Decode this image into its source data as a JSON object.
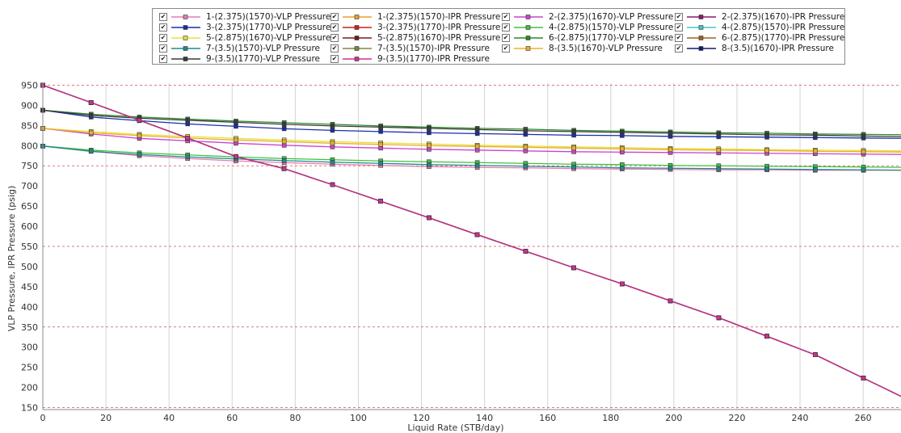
{
  "chart_data": {
    "type": "line",
    "xlabel": "Liquid Rate  (STB/day)",
    "ylabel": "VLP Pressure, IPR Pressure  (psig)",
    "xlim": [
      0,
      272
    ],
    "ylim": [
      145,
      955
    ],
    "xticks": [
      0,
      20,
      40,
      60,
      80,
      100,
      120,
      140,
      160,
      180,
      200,
      220,
      240,
      260
    ],
    "yticks": [
      150,
      200,
      250,
      300,
      350,
      400,
      450,
      500,
      550,
      600,
      650,
      700,
      750,
      800,
      850,
      900,
      950
    ],
    "grid": true,
    "legend_position": "top",
    "x": [
      0,
      15.3,
      30.6,
      45.9,
      61.2,
      76.5,
      91.8,
      107.1,
      122.4,
      137.7,
      153,
      168.3,
      183.6,
      198.9,
      214.2,
      229.5,
      244.8,
      260.1
    ],
    "series": [
      {
        "name": "1-(2.375)(1570)-VLP Pressure",
        "color": "#e87bb0",
        "values": [
          799,
          786,
          775,
          768,
          762,
          758,
          754,
          751,
          748,
          746,
          745,
          743,
          742,
          741,
          740,
          740,
          739,
          739
        ]
      },
      {
        "name": "1-(2.375)(1570)-IPR Pressure",
        "color": "#e8a030",
        "values": [
          950,
          907,
          863,
          819,
          773,
          743,
          703,
          662,
          621,
          579,
          538,
          497,
          457,
          415,
          373,
          327,
          281,
          223
        ]
      },
      {
        "name": "2-(2.375)(1670)-VLP Pressure",
        "color": "#cc44cc",
        "values": [
          843,
          829,
          818,
          812,
          806,
          801,
          797,
          794,
          791,
          789,
          787,
          785,
          784,
          783,
          782,
          781,
          780,
          779
        ]
      },
      {
        "name": "2-(2.375)(1670)-IPR Pressure",
        "color": "#8a1a6a",
        "values": [
          950,
          907,
          863,
          819,
          773,
          743,
          703,
          662,
          621,
          579,
          538,
          497,
          457,
          415,
          373,
          327,
          281,
          223
        ]
      },
      {
        "name": "3-(2.375)(1770)-VLP Pressure",
        "color": "#1a2ea8",
        "values": [
          888,
          871,
          862,
          854,
          848,
          842,
          838,
          835,
          832,
          830,
          828,
          826,
          825,
          823,
          822,
          821,
          820,
          819
        ]
      },
      {
        "name": "3-(2.375)(1770)-IPR Pressure",
        "color": "#cc2020",
        "values": [
          950,
          907,
          863,
          819,
          773,
          743,
          703,
          662,
          621,
          579,
          538,
          497,
          457,
          415,
          373,
          327,
          281,
          223
        ]
      },
      {
        "name": "4-(2.875)(1570)-VLP Pressure",
        "color": "#40c040",
        "values": [
          799,
          789,
          782,
          777,
          772,
          768,
          765,
          762,
          760,
          758,
          756,
          754,
          753,
          751,
          750,
          749,
          748,
          747
        ]
      },
      {
        "name": "4-(2.875)(1570)-IPR Pressure",
        "color": "#40c8c8",
        "values": [
          950,
          907,
          863,
          819,
          773,
          743,
          703,
          662,
          621,
          579,
          538,
          497,
          457,
          415,
          373,
          327,
          281,
          223
        ]
      },
      {
        "name": "5-(2.875)(1670)-VLP Pressure",
        "color": "#e8e040",
        "values": [
          843,
          835,
          828,
          823,
          818,
          814,
          810,
          807,
          804,
          801,
          799,
          797,
          795,
          793,
          792,
          790,
          789,
          788
        ]
      },
      {
        "name": "5-(2.875)(1670)-IPR Pressure",
        "color": "#7a1a1a",
        "values": [
          950,
          907,
          863,
          819,
          773,
          743,
          703,
          662,
          621,
          579,
          538,
          497,
          457,
          415,
          373,
          327,
          281,
          223
        ]
      },
      {
        "name": "6-(2.875)(1770)-VLP Pressure",
        "color": "#2a8a2a",
        "values": [
          888,
          878,
          871,
          866,
          861,
          857,
          853,
          849,
          846,
          843,
          841,
          838,
          836,
          834,
          832,
          831,
          829,
          828
        ]
      },
      {
        "name": "6-(2.875)(1770)-IPR Pressure",
        "color": "#a06020",
        "values": [
          950,
          907,
          863,
          819,
          773,
          743,
          703,
          662,
          621,
          579,
          538,
          497,
          457,
          415,
          373,
          327,
          281,
          223
        ]
      },
      {
        "name": "7-(3.5)(1570)-VLP Pressure",
        "color": "#208a8a",
        "values": [
          799,
          786,
          778,
          772,
          767,
          763,
          759,
          756,
          753,
          751,
          749,
          747,
          745,
          744,
          743,
          742,
          741,
          740
        ]
      },
      {
        "name": "7-(3.5)(1570)-IPR Pressure",
        "color": "#7a8a3a",
        "values": [
          950,
          907,
          863,
          819,
          773,
          743,
          703,
          662,
          621,
          579,
          538,
          497,
          457,
          415,
          373,
          327,
          281,
          223
        ]
      },
      {
        "name": "8-(3.5)(1670)-VLP Pressure",
        "color": "#e8b030",
        "values": [
          843,
          832,
          825,
          819,
          814,
          810,
          806,
          803,
          800,
          798,
          796,
          794,
          792,
          790,
          789,
          788,
          786,
          785
        ]
      },
      {
        "name": "8-(3.5)(1670)-IPR Pressure",
        "color": "#101a6a",
        "values": [
          950,
          907,
          863,
          819,
          773,
          743,
          703,
          662,
          621,
          579,
          538,
          497,
          457,
          415,
          373,
          327,
          281,
          223
        ]
      },
      {
        "name": "9-(3.5)(1770)-VLP Pressure",
        "color": "#3a3a3a",
        "values": [
          888,
          875,
          868,
          863,
          858,
          853,
          849,
          846,
          843,
          840,
          837,
          835,
          833,
          831,
          829,
          827,
          826,
          824
        ]
      },
      {
        "name": "9-(3.5)(1770)-IPR Pressure",
        "color": "#d03090",
        "values": [
          950,
          907,
          863,
          819,
          773,
          743,
          703,
          662,
          621,
          579,
          538,
          497,
          457,
          415,
          373,
          327,
          281,
          223
        ]
      }
    ]
  },
  "legend": {
    "check_glyph": "✔",
    "order": [
      "1-(2.375)(1570)-VLP Pressure",
      "1-(2.375)(1570)-IPR Pressure",
      "2-(2.375)(1670)-VLP Pressure",
      "2-(2.375)(1670)-IPR Pressure",
      "3-(2.375)(1770)-VLP Pressure",
      "3-(2.375)(1770)-IPR Pressure",
      "4-(2.875)(1570)-VLP Pressure",
      "4-(2.875)(1570)-IPR Pressure",
      "5-(2.875)(1670)-VLP Pressure",
      "5-(2.875)(1670)-IPR Pressure",
      "6-(2.875)(1770)-VLP Pressure",
      "6-(2.875)(1770)-IPR Pressure",
      "7-(3.5)(1570)-VLP Pressure",
      "7-(3.5)(1570)-IPR Pressure",
      "8-(3.5)(1670)-VLP Pressure",
      "8-(3.5)(1670)-IPR Pressure",
      "9-(3.5)(1770)-VLP Pressure",
      "9-(3.5)(1770)-IPR Pressure"
    ]
  }
}
